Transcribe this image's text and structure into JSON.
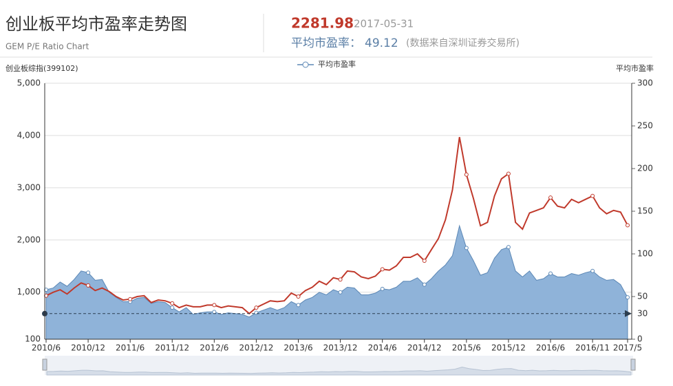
{
  "header": {
    "title": "创业板平均市盈率走势图",
    "subtitle": "GEM P/E Ratio Chart",
    "index_value": "2281.98",
    "date": "2017-05-31",
    "pe_label": "平均市盈率：",
    "pe_value": "49.12",
    "source": "(数据来自深圳证券交易所)"
  },
  "chart_data": {
    "type": "line",
    "y_label": "创业板综指(399102)",
    "y2_label": "平均市盈率",
    "categories": [
      "2010/6",
      null,
      null,
      null,
      null,
      null,
      "2010/12",
      null,
      null,
      null,
      null,
      null,
      "2011/6",
      null,
      null,
      null,
      null,
      null,
      "2011/12",
      null,
      null,
      null,
      null,
      null,
      "2012/6",
      null,
      null,
      null,
      null,
      null,
      "2012/12",
      null,
      null,
      null,
      null,
      null,
      "2013/6",
      null,
      null,
      null,
      null,
      null,
      "2013/12",
      null,
      null,
      null,
      null,
      null,
      "2014/6",
      null,
      null,
      null,
      null,
      null,
      "2014/12",
      null,
      null,
      null,
      null,
      null,
      "2015/6",
      null,
      null,
      null,
      null,
      null,
      "2015/12",
      null,
      null,
      null,
      null,
      null,
      "2016/6",
      null,
      null,
      null,
      null,
      null,
      "2016/11",
      null,
      null,
      null,
      null,
      "2017/5"
    ],
    "series": [
      {
        "name": "平均市盈率",
        "axis": "y2",
        "area": true,
        "color": "#8fb3d9",
        "stroke": "#5b87b5",
        "values": [
          58,
          60,
          67,
          62,
          70,
          80,
          78,
          69,
          70,
          55,
          49,
          44,
          44,
          48,
          49,
          42,
          44,
          43,
          37,
          32,
          37,
          29,
          31,
          32,
          32,
          29,
          31,
          30,
          29,
          26,
          31,
          34,
          37,
          34,
          37,
          44,
          40,
          46,
          49,
          55,
          52,
          58,
          55,
          61,
          60,
          52,
          52,
          54,
          59,
          58,
          61,
          68,
          68,
          72,
          64,
          71,
          80,
          87,
          98,
          133,
          107,
          92,
          75,
          78,
          95,
          105,
          108,
          80,
          73,
          80,
          69,
          71,
          77,
          73,
          73,
          77,
          75,
          78,
          80,
          73,
          69,
          70,
          64,
          49.12
        ]
      },
      {
        "axis": "y",
        "color": "#c0392b",
        "values": [
          933,
          998,
          1047,
          965,
          1080,
          1178,
          1129,
          1031,
          1080,
          1014,
          917,
          851,
          868,
          917,
          933,
          802,
          851,
          835,
          786,
          704,
          753,
          721,
          721,
          753,
          753,
          704,
          737,
          721,
          704,
          590,
          704,
          770,
          835,
          819,
          835,
          982,
          917,
          1031,
          1096,
          1210,
          1145,
          1276,
          1243,
          1406,
          1390,
          1292,
          1259,
          1308,
          1439,
          1423,
          1504,
          1668,
          1668,
          1733,
          1602,
          1815,
          2027,
          2386,
          2958,
          3970,
          3252,
          2794,
          2272,
          2337,
          2843,
          3170,
          3268,
          2337,
          2207,
          2517,
          2566,
          2615,
          2811,
          2647,
          2615,
          2778,
          2713,
          2778,
          2843,
          2615,
          2501,
          2566,
          2533,
          2281.98
        ]
      }
    ],
    "ylim": [
      100,
      5000
    ],
    "yticks": [
      100,
      {
        "value": 1000,
        "label": "1,000"
      },
      {
        "value": 2000,
        "label": "2,000"
      },
      {
        "value": 3000,
        "label": "3,000"
      },
      {
        "value": 4000,
        "label": "4,000"
      },
      {
        "value": 5000,
        "label": "5,000"
      }
    ],
    "y2lim": [
      0,
      300
    ],
    "y2ticks": [
      0,
      50,
      100,
      150,
      200,
      250,
      300
    ],
    "reference_line": {
      "value": 30,
      "axis": "y2"
    },
    "grid": true,
    "legend": "top"
  }
}
